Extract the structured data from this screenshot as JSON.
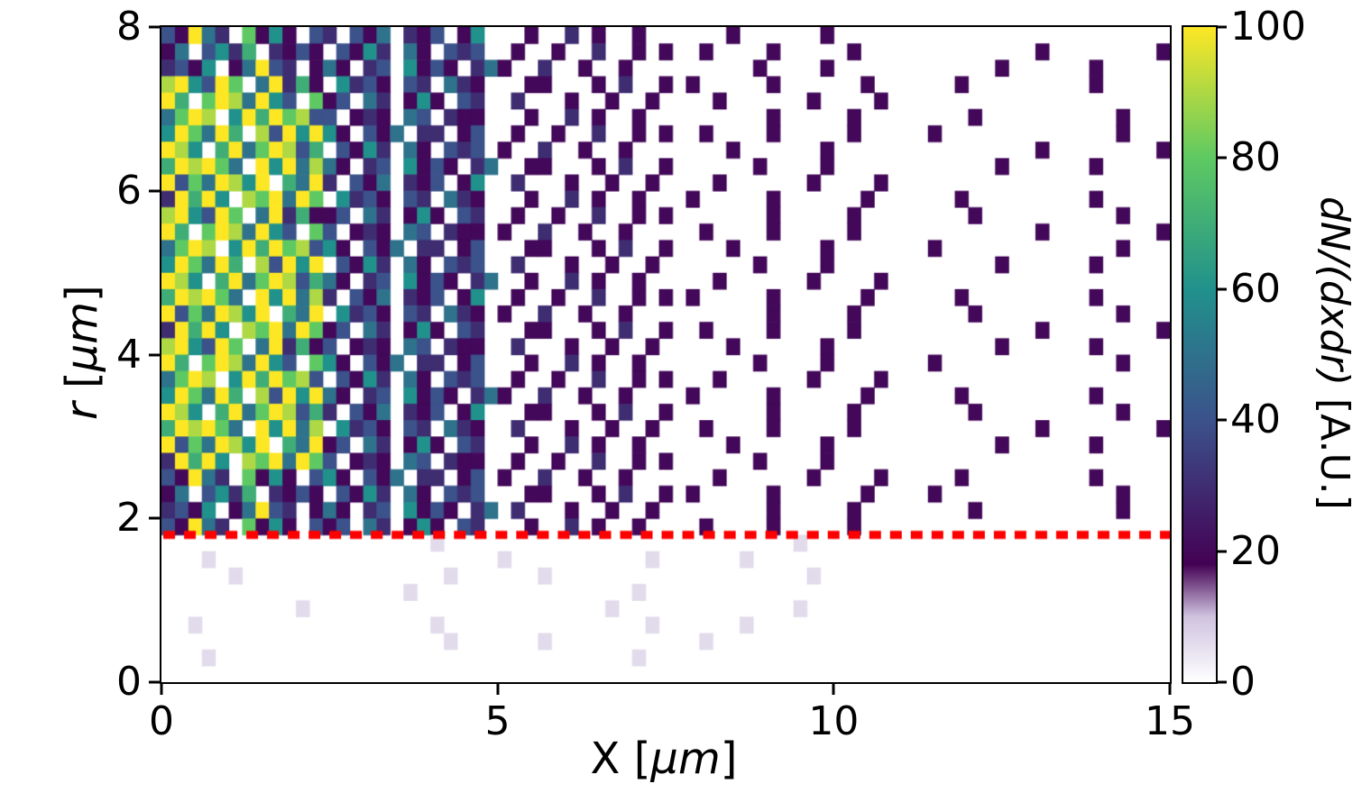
{
  "chart_data": {
    "type": "heatmap",
    "title": "",
    "xlabel": "X [μm]",
    "ylabel": "r [μm]",
    "colorbar_label": "dN/(dxdr) [A.U.]",
    "xlabel_parts": {
      "pre": "X [",
      "italic": "μm",
      "post": "]"
    },
    "ylabel_parts": {
      "p1": "r",
      "p2": " [",
      "p3": "μm",
      "p4": "]"
    },
    "colorbar_label_parts": {
      "italic": "dN/(dxdr)",
      "post": " [A.U.]"
    },
    "x_range": [
      0,
      15
    ],
    "y_range": [
      0,
      8
    ],
    "color_range": [
      0,
      100
    ],
    "x_ticks": [
      0,
      5,
      10,
      15
    ],
    "y_ticks": [
      0,
      2,
      4,
      6,
      8
    ],
    "colorbar_ticks": [
      0,
      20,
      40,
      60,
      80,
      100
    ],
    "grid_on": false,
    "nx": 75,
    "ny": 40,
    "bin_size_um": 0.2,
    "threshold_line": {
      "y_value": 1.8,
      "color": "#ff0000",
      "style": "dotted"
    },
    "colormap_stops": [
      [
        0,
        "#ffffff"
      ],
      [
        10,
        "#cfc3df"
      ],
      [
        18,
        "#440154"
      ],
      [
        40,
        "#3b528b"
      ],
      [
        60,
        "#21918c"
      ],
      [
        80,
        "#5ec962"
      ],
      [
        100,
        "#fde725"
      ]
    ],
    "cell_encoding": {
      "h": 6,
      "1": 10,
      "2": 20,
      "3": 30,
      "4": 40,
      "5": 50,
      "6": 60,
      "7": 70,
      "8": 80,
      "9": 90,
      "A": 100
    },
    "grid_rows_top_to_bottom": [
      [
        "42A53.8262.4",
        "3.425.324.26.",
        "..2..3.2..2..",
        "....2......2......",
        "..................."
      ],
      [
        "25.4637.3242",
        ".4263.52.434.",
        ".2..2..3..2.2",
        "..2....2.....2....",
        ".........2........2"
      ],
      [
        "3426.25A43.2",
        "52.34.6242.35",
        "2..3..2..2...",
        "......2....2......",
        "......2......2....."
      ],
      [
        "9A64A8.5A372",
        ".6342.43.532.",
        "..22...2.3..2",
        ".2.....2......2...",
        "...2.........2....."
      ],
      [
        "A7.8A95A64.8",
        "24.53.262.43.",
        ".3...2..2..2.",
        "...2......2....2..",
        "..................."
      ],
      [
        "58A9.6A7A894",
        "4.232.54.322.",
        "..2..3.2..2..",
        ".......2.....2....",
        "....2..........2..."
      ],
      [
        "6A85A7.94A6A",
        "62.425.33.24.",
        ".2..2..3..2.2",
        "..2....2.....2....",
        ".2.............2..."
      ],
      [
        "A96.7A58A947",
        ".4263.52.434.",
        "2..3..2..2...",
        "....2......2......",
        ".........2........2"
      ],
      [
        "7A9A85.A6A59",
        "52.34.6242.35",
        "..22...2.3..2",
        "......2....2......",
        "......2......2....."
      ],
      [
        "A485A96A.75A",
        "3.425.324.26.",
        ".3...2..2..2.",
        "...2......2....2..",
        "..................."
      ],
      [
        "3A7A6.98A5A8",
        ".6342.43.532.",
        "..2..3.2..2..",
        ".2.....2......2...",
        "...2.........2....."
      ],
      [
        "9A64A8.5A372",
        "24.53.262.43.",
        ".2..2..3..2.2",
        ".......2.....2....",
        "....2..........2..."
      ],
      [
        "A7.8A95A64.8",
        "4.232.54.322.",
        "2..3..2..2...",
        "..2....2.....2....",
        ".........2........2"
      ],
      [
        "58A9.6A7A894",
        "62.425.33.24.",
        "..22...2.3..2",
        "....2......2......",
        ".2.............2..."
      ],
      [
        "6A85A7.94A6A",
        ".4263.52.434.",
        ".3...2..2..2.",
        "......2....2......",
        "......2......2....."
      ],
      [
        "A96.7A58A947",
        "52.34.6242.35",
        "..2..3.2..2..",
        "...2......2....2..",
        "..................."
      ],
      [
        "7A9A85.A6A59",
        "3.425.324.26.",
        ".2..2..3..2.2",
        ".2.....2......2...",
        "...2.........2....."
      ],
      [
        "A485A96A.75A",
        ".6342.43.532.",
        "2..3..2..2...",
        ".......2.....2....",
        "....2..........2..."
      ],
      [
        "3A7A6.98A5A8",
        "24.53.262.43.",
        "..22...2.3..2",
        "..2....2.....2....",
        ".........2........2"
      ],
      [
        "9A64A8.5A372",
        "4.232.54.322.",
        ".3...2..2..2.",
        "....2......2......",
        "......2......2....."
      ],
      [
        "A7.8A95A64.8",
        "62.425.33.24.",
        "..2..3.2..2..",
        "......2....2......",
        ".2.............2..."
      ],
      [
        "58A9.6A7A894",
        ".4263.52.434.",
        ".2..2..3..2.2",
        "...2......2....2..",
        "..................."
      ],
      [
        "6A85A7.94A6A",
        "52.34.6242.35",
        "2..3..2..2...",
        ".2.....2......2...",
        "...2.........2....."
      ],
      [
        "A96.7A58A947",
        "3.425.324.26.",
        "..22...2.3..2",
        ".......2.....2....",
        "....2..........2..."
      ],
      [
        "7A9A85.A6A59",
        ".6342.43.532.",
        ".3...2..2..2.",
        "..2....2.....2....",
        ".........2........2"
      ],
      [
        "A485A96A.75A",
        "24.53.262.43.",
        "..2..3.2..2..",
        "....2......2......",
        "......2......2....."
      ],
      [
        "3A7A6.98A5A8",
        "4.232.54.322.",
        ".2..2..3..2.2",
        "......2....2......",
        "..................."
      ],
      [
        "42A53.8262.4",
        "62.425.33.24.",
        "2..3..2..2...",
        "...2......2....2..",
        "...2.........2....."
      ],
      [
        "25.4637.3242",
        ".4263.52.434.",
        "..22...2.3..2",
        ".2.....2......2...",
        ".2.............2..."
      ],
      [
        "3426.25A43.2",
        "52.34.6242.35",
        ".3...2..2..2.",
        ".......2.....2....",
        "....2..........2..."
      ],
      [
        "42A53.8262.4",
        "24.53.262.43.",
        "..2..3.2..2..",
        "..2....2.....2....",
        "..................."
      ],
      [
        "...............",
        ".....h.........",
        "...............",
        "..h............",
        "..............."
      ],
      [
        "...h...........",
        "..........h....",
        "......h......h.",
        "...............",
        "..............."
      ],
      [
        ".....h.........",
        "......h......h.",
        "...............",
        "...h...........",
        "..............."
      ],
      [
        "...............",
        "...h...........",
        ".....h.........",
        "...............",
        "..............."
      ],
      [
        "..........h....",
        "...............",
        "...h...........",
        "..h............",
        "..............."
      ],
      [
        "..h............",
        ".....h.........",
        "......h......h.",
        "...............",
        "..............."
      ],
      [
        "...............",
        "......h......h.",
        "..........h....",
        "...............",
        "..............."
      ],
      [
        "...h...........",
        "...............",
        ".....h.........",
        "...............",
        "..............."
      ],
      [
        "...............",
        "...............",
        "...............",
        "...............",
        "..............."
      ]
    ]
  }
}
